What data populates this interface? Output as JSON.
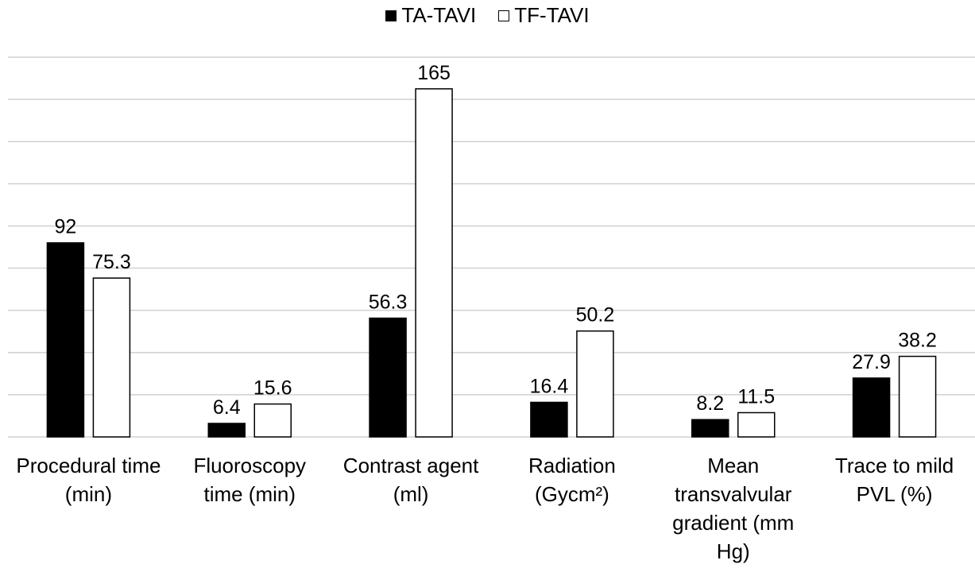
{
  "chart_data": {
    "type": "bar",
    "categories": [
      "Procedural time (min)",
      "Fluoroscopy time (min)",
      "Contrast agent (ml)",
      "Radiation (Gycm²)",
      "Mean transvalvular gradient (mm Hg)",
      "Trace to mild PVL (%)"
    ],
    "series": [
      {
        "name": "TA-TAVI",
        "color": "#000000",
        "values": [
          92,
          6.4,
          56.3,
          16.4,
          8.2,
          27.9
        ]
      },
      {
        "name": "TF-TAVI",
        "color": "#ffffff",
        "values": [
          75.3,
          15.6,
          165,
          50.2,
          11.5,
          38.2
        ]
      }
    ],
    "ylim": [
      0,
      180
    ],
    "yticks": [
      0,
      20,
      40,
      60,
      80,
      100,
      120,
      140,
      160,
      180
    ],
    "grid": true,
    "legend": "top"
  }
}
